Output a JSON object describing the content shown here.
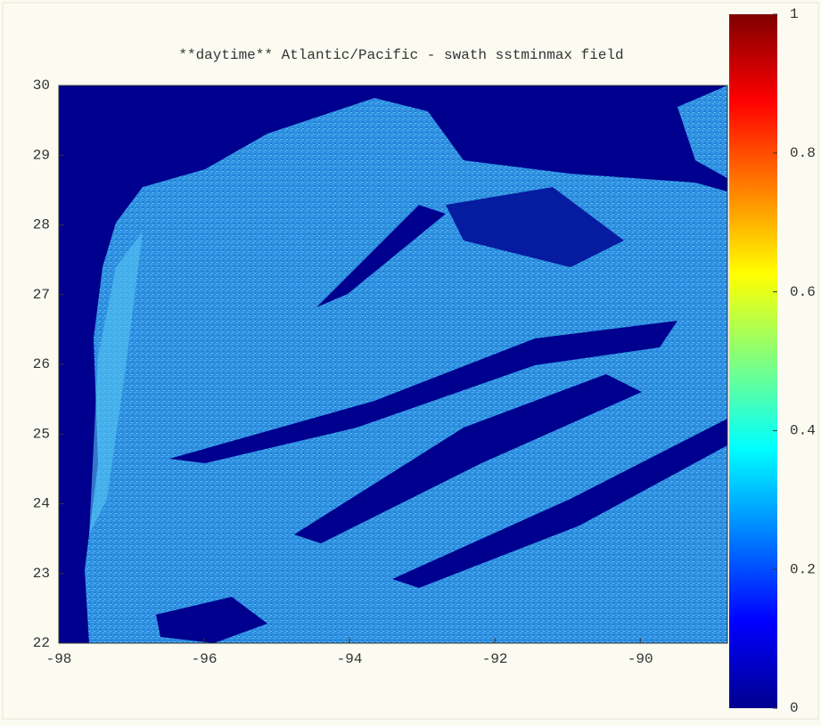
{
  "chart_data": {
    "type": "heatmap",
    "title": "**daytime** Atlantic/Pacific - swath sstminmax field",
    "xlim": [
      -98,
      -88.8
    ],
    "xticks": [
      -98,
      -96,
      -94,
      -92,
      -90
    ],
    "ylim": [
      22,
      30
    ],
    "yticks": [
      22,
      23,
      24,
      25,
      26,
      27,
      28,
      29,
      30
    ],
    "colorbar": {
      "lim": [
        0,
        1
      ],
      "ticks": [
        0,
        0.2,
        0.4,
        0.6,
        0.8,
        1
      ],
      "colormap": "jet"
    }
  }
}
